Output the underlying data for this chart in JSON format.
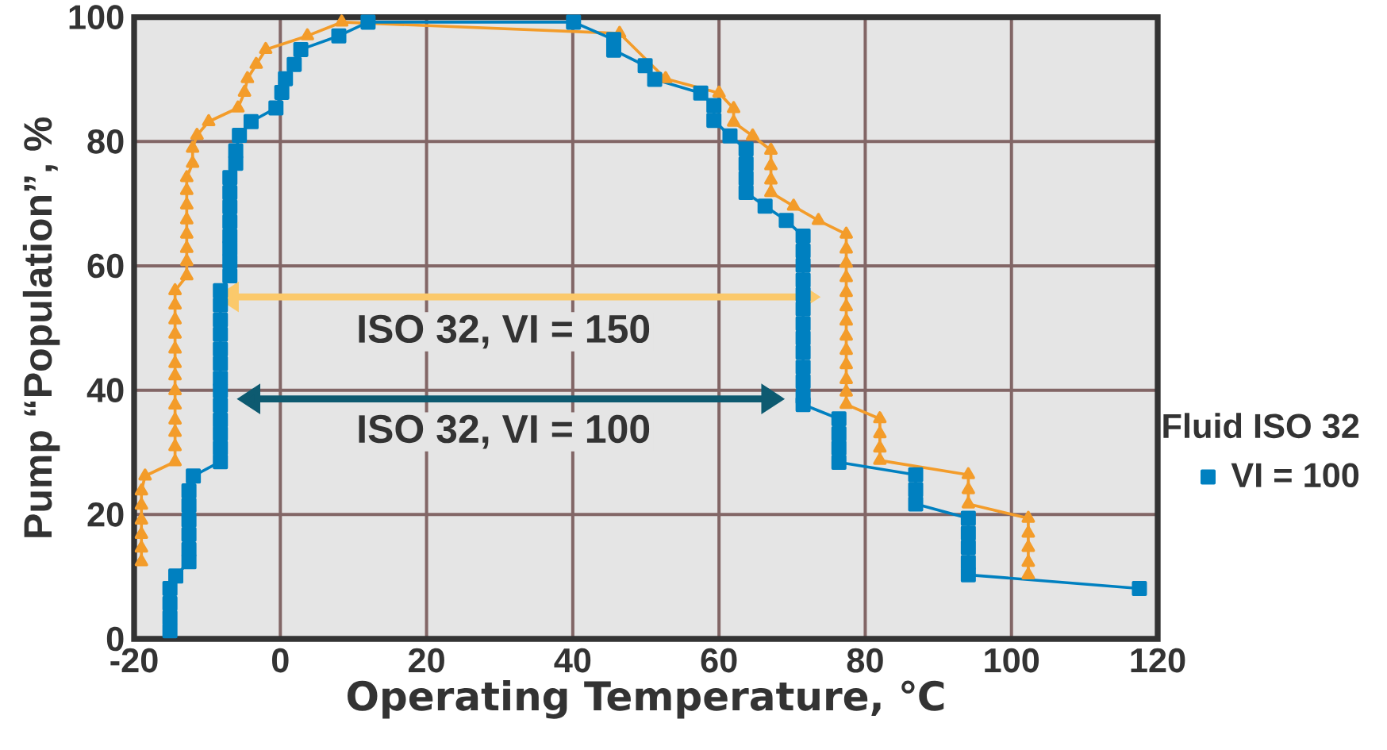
{
  "chart_data": {
    "type": "line",
    "xlabel": "Operating Temperature, ℃",
    "ylabel": "Pump “Population”, %",
    "xlim": [
      -20,
      120
    ],
    "xticks": [
      -20,
      0,
      20,
      40,
      60,
      80,
      100,
      120
    ],
    "ylim": [
      0,
      100
    ],
    "yticks": [
      0,
      20,
      40,
      60,
      80,
      100
    ],
    "grid": true,
    "legend": "right",
    "legend_title": "Fluid ISO 32",
    "annotations": [
      "ISO 32, VI = 150",
      "ISO 32, VI = 100"
    ],
    "series": [
      {
        "color": "#f39c2a",
        "marker": "triangle",
        "x": [
          -19.0,
          -19.0,
          -19.0,
          -19.0,
          -19.0,
          -19.0,
          -18.5,
          -14.4,
          -14.4,
          -14.4,
          -14.4,
          -14.4,
          -14.4,
          -14.4,
          -14.4,
          -14.4,
          -14.4,
          -14.4,
          -14.4,
          -14.4,
          -12.8,
          -12.8,
          -12.8,
          -12.8,
          -12.8,
          -12.8,
          -12.8,
          -12.8,
          -12.0,
          -12.0,
          -11.4,
          -9.8,
          -5.8,
          -4.9,
          -4.5,
          -3.3,
          -2.0,
          3.7,
          8.4,
          46.4,
          52.7,
          60.0,
          62.0,
          62.0,
          64.6,
          67.1,
          67.1,
          67.1,
          67.1,
          70.2,
          73.6,
          77.4,
          77.4,
          77.4,
          77.4,
          77.4,
          77.4,
          77.4,
          77.4,
          77.4,
          77.4,
          77.4,
          77.4,
          77.4,
          82.0,
          82.0,
          82.0,
          82.0,
          94.1,
          94.1,
          94.1,
          102.3,
          102.3,
          102.3,
          102.3,
          102.3
        ],
        "values": [
          12.4,
          14.6,
          16.8,
          19.1,
          21.5,
          23.8,
          26.2,
          28.5,
          30.9,
          33.2,
          35.2,
          37.6,
          39.9,
          42.3,
          44.3,
          46.6,
          49.0,
          51.3,
          53.7,
          56.0,
          58.4,
          60.7,
          62.8,
          65.1,
          67.4,
          69.8,
          72.1,
          74.2,
          76.5,
          78.9,
          81.0,
          83.2,
          85.4,
          87.9,
          90.1,
          92.4,
          94.8,
          97.0,
          99.2,
          97.4,
          90.1,
          87.8,
          85.3,
          83.1,
          80.9,
          78.6,
          76.1,
          73.8,
          71.8,
          69.6,
          67.3,
          65.1,
          62.7,
          60.4,
          58.1,
          55.7,
          53.4,
          51.1,
          48.7,
          46.4,
          44.1,
          41.7,
          39.7,
          37.7,
          35.4,
          33.0,
          30.7,
          28.7,
          26.4,
          24.0,
          21.7,
          19.4,
          17.0,
          14.7,
          12.3,
          10.3
        ]
      },
      {
        "name": "VI = 100",
        "color": "#0080c0",
        "marker": "square",
        "x": [
          -15.1,
          -15.1,
          -15.1,
          -15.1,
          -14.3,
          -12.5,
          -12.5,
          -12.5,
          -12.5,
          -12.5,
          -12.5,
          -11.9,
          -8.2,
          -8.2,
          -8.2,
          -8.2,
          -8.2,
          -8.2,
          -8.2,
          -8.2,
          -8.2,
          -8.2,
          -8.2,
          -8.2,
          -8.2,
          -6.9,
          -6.9,
          -6.9,
          -6.9,
          -6.9,
          -6.9,
          -6.9,
          -6.9,
          -6.1,
          -6.1,
          -5.6,
          -4.0,
          -0.6,
          0.2,
          0.7,
          1.9,
          2.8,
          8.0,
          12.0,
          40.1,
          45.6,
          45.6,
          49.9,
          51.2,
          57.5,
          59.3,
          59.3,
          61.5,
          63.7,
          63.7,
          63.7,
          63.7,
          66.3,
          69.2,
          71.5,
          71.5,
          71.5,
          71.5,
          71.5,
          71.5,
          71.5,
          71.5,
          71.5,
          71.5,
          71.5,
          71.5,
          71.5,
          76.4,
          76.4,
          76.4,
          76.4,
          86.9,
          86.9,
          86.9,
          94.1,
          94.1,
          94.1,
          94.1,
          94.1,
          117.5
        ],
        "values": [
          1.3,
          3.4,
          5.7,
          8.1,
          10.1,
          12.4,
          14.4,
          16.8,
          19.1,
          21.5,
          23.8,
          26.2,
          28.5,
          30.7,
          33.0,
          35.2,
          37.6,
          39.9,
          41.9,
          44.3,
          46.6,
          49.0,
          51.3,
          53.7,
          56.0,
          58.4,
          60.7,
          62.8,
          64.8,
          67.1,
          69.5,
          71.8,
          74.2,
          76.5,
          78.5,
          81.0,
          83.2,
          85.4,
          87.9,
          90.1,
          92.4,
          94.8,
          97.0,
          99.2,
          99.2,
          96.4,
          94.7,
          92.2,
          90.0,
          87.8,
          85.8,
          83.4,
          80.9,
          78.8,
          76.4,
          74.1,
          71.8,
          69.6,
          67.3,
          64.8,
          62.4,
          60.1,
          57.7,
          55.4,
          53.1,
          50.7,
          48.4,
          46.1,
          43.7,
          41.4,
          39.0,
          37.7,
          35.4,
          33.0,
          30.7,
          28.4,
          26.4,
          24.0,
          21.7,
          19.4,
          17.0,
          14.7,
          12.3,
          10.3,
          8.1
        ]
      }
    ]
  }
}
